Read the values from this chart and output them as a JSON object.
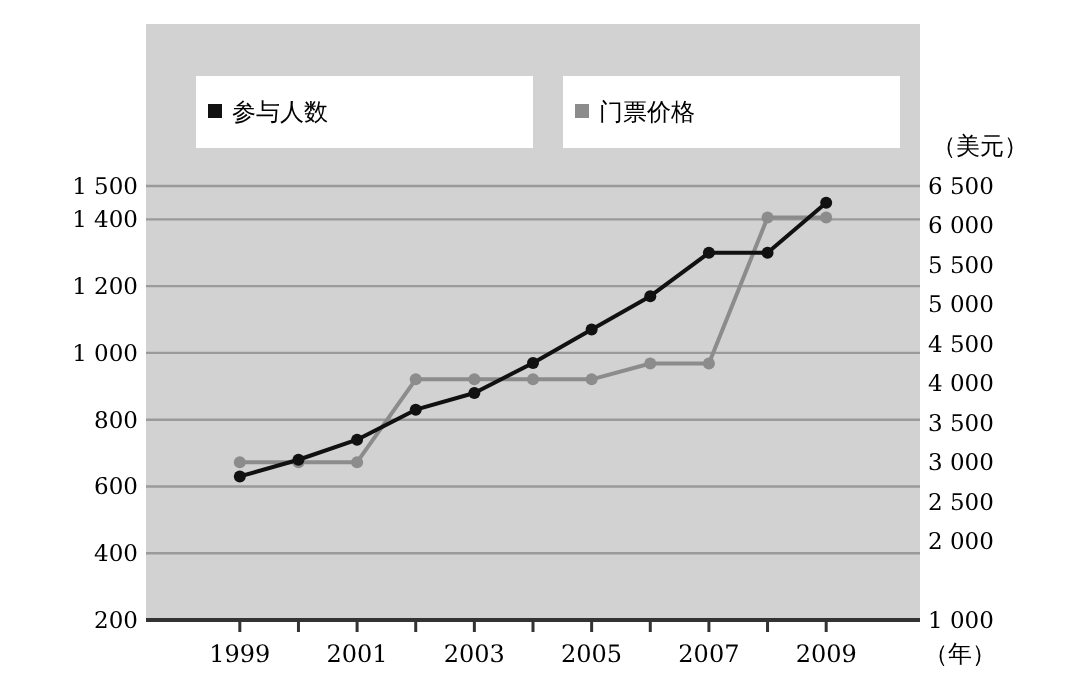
{
  "chart_data": {
    "type": "line",
    "xlabel": "（年）",
    "y2label": "（美元）",
    "x": [
      1999,
      2000,
      2001,
      2002,
      2003,
      2004,
      2005,
      2006,
      2007,
      2008,
      2009
    ],
    "series": [
      {
        "name": "参与人数",
        "color": "#111111",
        "values": [
          630,
          680,
          740,
          830,
          880,
          970,
          1070,
          1170,
          1300,
          1300,
          1450
        ]
      },
      {
        "name": "门票价格",
        "color": "#8c8c8c",
        "axis": "y2",
        "values": [
          3000,
          3000,
          3000,
          4050,
          4050,
          4050,
          4050,
          4250,
          4250,
          6100,
          6100
        ]
      }
    ],
    "xlim": [
      1997.4,
      2010.6
    ],
    "xticks": [
      1999,
      {
        "value": 2000,
        "label": null
      },
      2001,
      {
        "value": 2002,
        "label": null
      },
      2003,
      {
        "value": 2004,
        "label": null
      },
      2005,
      {
        "value": 2006,
        "label": null
      },
      2007,
      {
        "value": 2008,
        "label": null
      },
      2009
    ],
    "ylim": [
      200,
      1500
    ],
    "yticks": [
      {
        "value": 200,
        "label": "200"
      },
      {
        "value": 400,
        "label": "400"
      },
      {
        "value": 600,
        "label": "600"
      },
      {
        "value": 800,
        "label": "800"
      },
      {
        "value": 1000,
        "label": "1 000"
      },
      {
        "value": 1200,
        "label": "1 200"
      },
      {
        "value": 1400,
        "label": "1 400"
      },
      {
        "value": 1500,
        "label": "1 500"
      }
    ],
    "y2lim": [
      1000,
      6500
    ],
    "y2ticks": [
      {
        "value": 1000,
        "label": "1 000"
      },
      {
        "value": 2000,
        "label": "2 000"
      },
      {
        "value": 2500,
        "label": "2 500"
      },
      {
        "value": 3000,
        "label": "3 000"
      },
      {
        "value": 3500,
        "label": "3 500"
      },
      {
        "value": 4000,
        "label": "4 000"
      },
      {
        "value": 4500,
        "label": "4 500"
      },
      {
        "value": 5000,
        "label": "5 000"
      },
      {
        "value": 5500,
        "label": "5 500"
      },
      {
        "value": 6000,
        "label": "6 000"
      },
      {
        "value": 6500,
        "label": "6 500"
      }
    ],
    "grid": "y",
    "legend": "top",
    "marker": "circle",
    "line_style": "solid"
  }
}
